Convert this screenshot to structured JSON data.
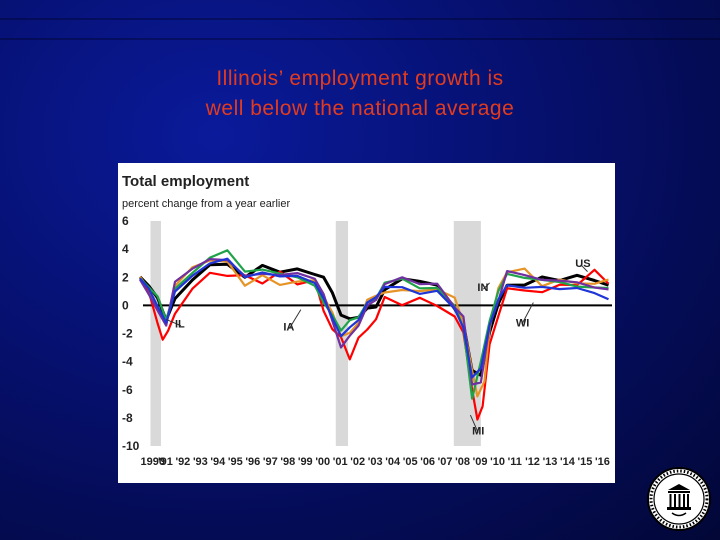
{
  "slide": {
    "title_line1": "Illinois’ employment growth is",
    "title_line2": "well below the national average"
  },
  "colors": {
    "background": "#06106e",
    "title": "#e23b1e",
    "recession_band": "#d9d9d9"
  },
  "seal_icon": "federal-reserve-seal-icon",
  "chart_data": {
    "type": "line",
    "title": "Total employment",
    "subtitle": "percent change from a year earlier",
    "ylim": [
      -10,
      6
    ],
    "y_ticks": [
      6,
      4,
      2,
      0,
      -2,
      -4,
      -6,
      -8,
      -10
    ],
    "xlim": [
      1990,
      2017
    ],
    "x_tick_labels": [
      "1990",
      "'91",
      "'92",
      "'93",
      "'94",
      "'95",
      "'96",
      "'97",
      "'98",
      "'99",
      "'00",
      "'01",
      "'02",
      "'03",
      "'04",
      "'05",
      "'06",
      "'07",
      "'08",
      "'09",
      "'10",
      "'11",
      "'12",
      "'13",
      "'14",
      "'15",
      "'16"
    ],
    "recessions": [
      [
        1990.6,
        1991.2
      ],
      [
        2001.2,
        2001.9
      ],
      [
        2007.95,
        2009.5
      ]
    ],
    "series": [
      {
        "name": "US",
        "color": "#000000",
        "x": [
          1990,
          1990.5,
          1991,
          1991.5,
          1992,
          1993,
          1994,
          1995,
          1996,
          1997,
          1998,
          1999,
          2000,
          2000.5,
          2001,
          2001.5,
          2002,
          2002.5,
          2003,
          2003.5,
          2004,
          2005,
          2006,
          2007,
          2008,
          2008.5,
          2009,
          2009.5,
          2010,
          2010.5,
          2011,
          2012,
          2013,
          2014,
          2015,
          2016,
          2016.8
        ],
        "y": [
          1.9,
          1.6,
          0.3,
          -0.8,
          0.3,
          1.9,
          2.9,
          2.8,
          2.2,
          2.6,
          2.6,
          2.4,
          2.3,
          2.0,
          0.8,
          -0.5,
          -1.2,
          -0.6,
          -0.4,
          0.0,
          1.1,
          1.8,
          1.9,
          1.2,
          0.0,
          -1.5,
          -4.5,
          -5.0,
          -2.0,
          0.3,
          1.2,
          1.7,
          1.8,
          1.9,
          2.1,
          1.7,
          1.6
        ]
      },
      {
        "name": "IL",
        "color": "#ff0000",
        "x": [
          1990,
          1990.5,
          1991,
          1991.3,
          1991.6,
          1992,
          1993,
          1994,
          1995,
          1996,
          1997,
          1998,
          1999,
          2000,
          2000.5,
          2001,
          2001.5,
          2002,
          2002.5,
          2003,
          2003.5,
          2004,
          2005,
          2006,
          2007,
          2008,
          2008.5,
          2009,
          2009.3,
          2009.6,
          2010,
          2010.5,
          2011,
          2012,
          2013,
          2014,
          2015,
          2016,
          2016.8
        ],
        "y": [
          1.8,
          1.2,
          -1.5,
          -2.2,
          -2.0,
          -0.5,
          1.2,
          2.2,
          2.3,
          1.9,
          1.8,
          2.2,
          1.6,
          1.8,
          -0.5,
          -1.5,
          -2.5,
          -3.6,
          -2.5,
          -1.6,
          -1.0,
          0.5,
          0.2,
          0.3,
          0.2,
          -1.0,
          -1.8,
          -6.0,
          -8.2,
          -7.0,
          -3.0,
          -0.5,
          1.0,
          1.2,
          0.9,
          1.4,
          1.6,
          2.3,
          1.8
        ]
      },
      {
        "name": "IN",
        "color": "#e69425",
        "x": [
          1990,
          1990.5,
          1991,
          1991.5,
          1992,
          1993,
          1994,
          1995,
          1996,
          1997,
          1998,
          1999,
          2000,
          2000.5,
          2001,
          2001.5,
          2002,
          2002.5,
          2003,
          2003.5,
          2004,
          2005,
          2006,
          2007,
          2008,
          2008.5,
          2009,
          2009.3,
          2009.7,
          2010,
          2010.5,
          2011,
          2012,
          2013,
          2014,
          2015,
          2016,
          2016.8
        ],
        "y": [
          1.9,
          1.4,
          -0.5,
          -1.0,
          1.2,
          2.8,
          3.2,
          3.0,
          1.6,
          1.9,
          1.7,
          1.5,
          1.9,
          0.6,
          -0.6,
          -2.0,
          -2.2,
          -1.0,
          0.2,
          0.8,
          0.9,
          1.0,
          1.2,
          0.9,
          0.8,
          -1.5,
          -4.5,
          -6.5,
          -5.5,
          -1.5,
          1.0,
          2.6,
          2.4,
          1.5,
          1.8,
          1.5,
          1.7,
          1.6
        ]
      },
      {
        "name": "IA",
        "color": "#1fa34a",
        "x": [
          1990,
          1990.5,
          1991,
          1991.5,
          1992,
          1993,
          1994,
          1995,
          1996,
          1997,
          1998,
          1999,
          2000,
          2000.5,
          2001,
          2001.5,
          2002,
          2002.5,
          2003,
          2003.5,
          2004,
          2005,
          2006,
          2007,
          2008,
          2008.5,
          2009,
          2009.5,
          2010,
          2010.5,
          2011,
          2012,
          2013,
          2014,
          2015,
          2016,
          2016.8
        ],
        "y": [
          1.8,
          1.5,
          0.4,
          -0.8,
          1.0,
          2.4,
          3.4,
          3.8,
          2.6,
          2.3,
          2.5,
          1.8,
          1.5,
          0.2,
          -0.8,
          -1.6,
          -1.3,
          -0.6,
          0.0,
          0.6,
          1.6,
          1.8,
          1.4,
          1.0,
          0.2,
          -1.8,
          -6.5,
          -4.0,
          -1.2,
          1.2,
          2.0,
          2.2,
          1.6,
          1.8,
          1.3,
          1.2,
          1.4
        ]
      },
      {
        "name": "MI",
        "color": "#7030a0",
        "x": [
          1990,
          1990.5,
          1991,
          1991.5,
          1992,
          1993,
          1994,
          1995,
          1996,
          1997,
          1998,
          1999,
          2000,
          2000.5,
          2001,
          2001.5,
          2002,
          2002.5,
          2003,
          2003.5,
          2004,
          2005,
          2006,
          2007,
          2008,
          2008.5,
          2009,
          2009.5,
          2010,
          2010.5,
          2011,
          2012,
          2013,
          2014,
          2015,
          2016,
          2016.8
        ],
        "y": [
          1.7,
          1.0,
          -0.6,
          -1.2,
          1.5,
          2.7,
          3.3,
          3.1,
          2.3,
          2.0,
          2.4,
          2.1,
          2.0,
          0.8,
          -1.2,
          -2.8,
          -2.4,
          -1.2,
          -0.2,
          0.5,
          1.5,
          1.9,
          1.7,
          1.3,
          0.1,
          -1.0,
          -5.5,
          -5.5,
          -1.5,
          0.5,
          2.2,
          2.4,
          1.6,
          1.9,
          1.6,
          1.2,
          1.3
        ]
      },
      {
        "name": "WI",
        "color": "#1f35d6",
        "x": [
          1990,
          1990.5,
          1991,
          1991.5,
          1992,
          1993,
          1994,
          1995,
          1996,
          1997,
          1998,
          1999,
          2000,
          2000.5,
          2001,
          2001.5,
          2002,
          2002.5,
          2003,
          2003.5,
          2004,
          2005,
          2006,
          2007,
          2008,
          2008.5,
          2009,
          2009.5,
          2010,
          2010.5,
          2011,
          2012,
          2013,
          2014,
          2015,
          2016,
          2016.8
        ],
        "y": [
          1.8,
          1.4,
          -0.3,
          -1.0,
          0.8,
          2.2,
          3.0,
          3.2,
          2.2,
          2.1,
          2.3,
          1.9,
          1.7,
          0.5,
          -1.0,
          -2.0,
          -1.8,
          -0.8,
          0.0,
          0.7,
          1.3,
          1.2,
          1.0,
          0.8,
          0.0,
          -1.8,
          -5.0,
          -4.5,
          -1.5,
          0.6,
          1.2,
          1.5,
          1.1,
          1.3,
          1.2,
          0.8,
          0.6
        ]
      }
    ],
    "annotations": [
      {
        "text": "US",
        "x": 2014.9,
        "y": 3.0,
        "target_x": 2015.6,
        "target_y": 2.4
      },
      {
        "text": "IN",
        "x": 2009.3,
        "y": 1.3,
        "target_x": 2010.0,
        "target_y": 1.6
      },
      {
        "text": "IL",
        "x": 1992.0,
        "y": -1.3,
        "target_x": 1991.5,
        "target_y": -1.0
      },
      {
        "text": "IA",
        "x": 1998.2,
        "y": -1.5,
        "target_x": 1999.2,
        "target_y": -0.3
      },
      {
        "text": "WI",
        "x": 2011.5,
        "y": -1.2,
        "target_x": 2012.5,
        "target_y": 0.2
      },
      {
        "text": "MI",
        "x": 2009.0,
        "y": -8.9,
        "target_x": 2008.9,
        "target_y": -7.8
      }
    ]
  }
}
